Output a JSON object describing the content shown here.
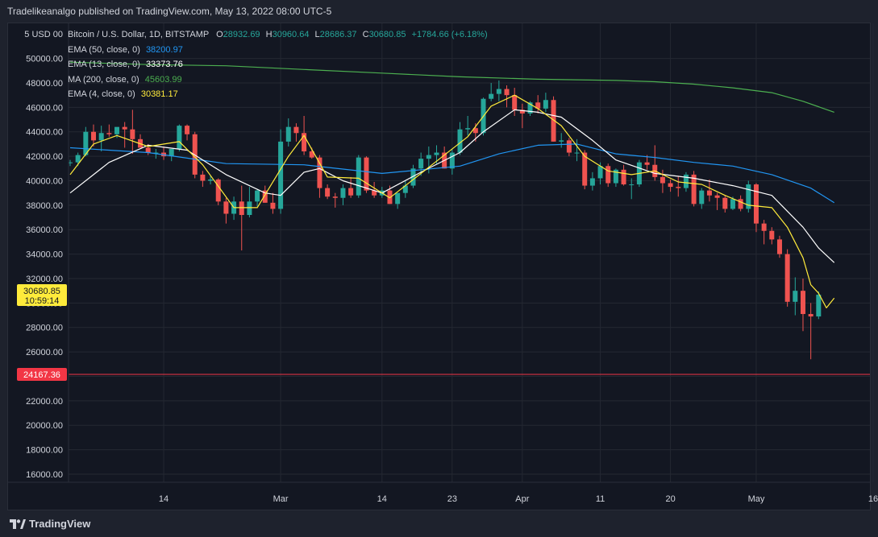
{
  "header": {
    "published_text": "Tradelikeanalgo published on TradingView.com, May 13, 2022 08:00 UTC-5"
  },
  "legend": {
    "symbol": "Bitcoin / U.S. Dollar, 1D, BITSTAMP",
    "ohlc": {
      "o_label": "O",
      "o": "28932.69",
      "h_label": "H",
      "h": "30960.64",
      "l_label": "L",
      "l": "28686.37",
      "c_label": "C",
      "c": "30680.85",
      "change": "+1784.66 (+6.18%)"
    },
    "indicators": [
      {
        "label": "EMA (50, close, 0)",
        "value": "38200.97",
        "color": "#2196f3"
      },
      {
        "label": "EMA (13, close, 0)",
        "value": "33373.76",
        "color": "#ffffff"
      },
      {
        "label": "MA (200, close, 0)",
        "value": "45603.99",
        "color": "#4caf50"
      },
      {
        "label": "EMA (4, close, 0)",
        "value": "30381.17",
        "color": "#ffeb3b"
      }
    ]
  },
  "price_axis": {
    "currency_label": "5 USD 00",
    "current_price": "30680.85",
    "countdown": "10:59:14",
    "hline_price": "24167.36"
  },
  "footer": {
    "brand": "TradingView"
  },
  "colors": {
    "up": "#26a69a",
    "down": "#ef5350",
    "ema50": "#2196f3",
    "ema13": "#ffffff",
    "ma200": "#4caf50",
    "ema4": "#ffeb3b",
    "hline": "#f23645",
    "current": "#ffeb3b"
  },
  "chart_data": {
    "type": "candlestick",
    "title": "Bitcoin / U.S. Dollar, 1D, BITSTAMP",
    "ylim": [
      15000,
      52000
    ],
    "yticks": [
      16000,
      18000,
      20000,
      22000,
      24000,
      26000,
      28000,
      30000,
      32000,
      34000,
      36000,
      38000,
      40000,
      42000,
      44000,
      46000,
      48000,
      50000
    ],
    "ytick_labels": [
      "16000.00",
      "18000.00",
      "20000.00",
      "22000.00",
      "24000.00",
      "26000.00",
      "28000.00",
      "30000.00",
      "32000.00",
      "34000.00",
      "36000.00",
      "38000.00",
      "40000.00",
      "42000.00",
      "44000.00",
      "46000.00",
      "48000.00",
      "50000.00"
    ],
    "x_start": "2022-02-02",
    "xticks": [
      {
        "date": "2022-02-14",
        "label": "14"
      },
      {
        "date": "2022-03-01",
        "label": "Mar"
      },
      {
        "date": "2022-03-14",
        "label": "14"
      },
      {
        "date": "2022-03-23",
        "label": "23"
      },
      {
        "date": "2022-04-01",
        "label": "Apr"
      },
      {
        "date": "2022-04-11",
        "label": "11"
      },
      {
        "date": "2022-04-20",
        "label": "20"
      },
      {
        "date": "2022-05-01",
        "label": "May"
      },
      {
        "date": "2022-05-16",
        "label": "16"
      }
    ],
    "candles": [
      [
        41500,
        41700,
        41200,
        41500
      ],
      [
        41500,
        42300,
        41200,
        42100
      ],
      [
        42100,
        44400,
        42000,
        44000
      ],
      [
        44000,
        44600,
        42800,
        43300
      ],
      [
        43300,
        44500,
        42400,
        43900
      ],
      [
        43900,
        44600,
        43600,
        43800
      ],
      [
        43800,
        44300,
        43500,
        44400
      ],
      [
        44400,
        44800,
        42700,
        44200
      ],
      [
        44200,
        45800,
        42200,
        43400
      ],
      [
        43400,
        43800,
        42800,
        42700
      ],
      [
        42700,
        43000,
        42100,
        42300
      ],
      [
        42300,
        42600,
        41800,
        42300
      ],
      [
        42300,
        42800,
        41700,
        42000
      ],
      [
        42000,
        42600,
        41600,
        42600
      ],
      [
        42600,
        44600,
        42400,
        44500
      ],
      [
        44500,
        44600,
        43300,
        43800
      ],
      [
        43800,
        44000,
        40200,
        40500
      ],
      [
        40500,
        40800,
        39500,
        40000
      ],
      [
        40000,
        40400,
        39700,
        40100
      ],
      [
        40100,
        40200,
        38000,
        38300
      ],
      [
        38300,
        38600,
        36500,
        37300
      ],
      [
        37300,
        38700,
        36800,
        38300
      ],
      [
        38300,
        39600,
        34300,
        37200
      ],
      [
        37200,
        39500,
        37000,
        38300
      ],
      [
        38300,
        39300,
        37900,
        39200
      ],
      [
        39200,
        39600,
        38200,
        38200
      ],
      [
        38200,
        39000,
        37300,
        37700
      ],
      [
        37700,
        44200,
        37300,
        43200
      ],
      [
        43200,
        45100,
        42800,
        44400
      ],
      [
        44400,
        44700,
        43200,
        43900
      ],
      [
        43900,
        45300,
        42100,
        42400
      ],
      [
        42400,
        42700,
        41800,
        41900
      ],
      [
        41900,
        42100,
        38600,
        39400
      ],
      [
        39400,
        39700,
        38500,
        38700
      ],
      [
        38700,
        39000,
        37800,
        38600
      ],
      [
        38600,
        39700,
        38000,
        39400
      ],
      [
        39400,
        40300,
        38600,
        38800
      ],
      [
        38800,
        42100,
        38600,
        41900
      ],
      [
        41900,
        42000,
        39000,
        39200
      ],
      [
        39200,
        39900,
        38600,
        38800
      ],
      [
        38800,
        39500,
        38600,
        39200
      ],
      [
        39200,
        39600,
        38100,
        38100
      ],
      [
        38100,
        39000,
        37700,
        39000
      ],
      [
        39000,
        40000,
        38600,
        39600
      ],
      [
        39600,
        41300,
        39400,
        41000
      ],
      [
        41000,
        42300,
        40400,
        41800
      ],
      [
        41800,
        42800,
        40600,
        42100
      ],
      [
        42100,
        42900,
        41400,
        42300
      ],
      [
        42300,
        42800,
        41000,
        41000
      ],
      [
        41000,
        42600,
        40500,
        42300
      ],
      [
        42300,
        44800,
        42100,
        44200
      ],
      [
        44200,
        45300,
        43700,
        44300
      ],
      [
        44300,
        44700,
        43200,
        43900
      ],
      [
        43900,
        46800,
        43700,
        46700
      ],
      [
        46700,
        48000,
        46500,
        47100
      ],
      [
        47100,
        48200,
        46500,
        47500
      ],
      [
        47500,
        47800,
        46000,
        47000
      ],
      [
        47000,
        47600,
        45300,
        45800
      ],
      [
        45800,
        46300,
        44300,
        45500
      ],
      [
        45500,
        46500,
        45300,
        46400
      ],
      [
        46400,
        47000,
        45500,
        45900
      ],
      [
        45900,
        47200,
        45600,
        46600
      ],
      [
        46600,
        46900,
        43200,
        43200
      ],
      [
        43200,
        43900,
        42700,
        43300
      ],
      [
        43300,
        43500,
        42000,
        42300
      ],
      [
        42300,
        43400,
        41600,
        42300
      ],
      [
        42300,
        42500,
        39300,
        39600
      ],
      [
        39600,
        40700,
        39200,
        40200
      ],
      [
        40200,
        41500,
        39700,
        41200
      ],
      [
        41200,
        41400,
        39500,
        39800
      ],
      [
        39800,
        41000,
        39500,
        40900
      ],
      [
        40900,
        41300,
        39600,
        39700
      ],
      [
        39700,
        40200,
        38500,
        39700
      ],
      [
        39700,
        41700,
        39500,
        41500
      ],
      [
        41500,
        42100,
        40900,
        41300
      ],
      [
        41300,
        42900,
        40000,
        40300
      ],
      [
        40300,
        40900,
        39000,
        39800
      ],
      [
        39800,
        40100,
        39100,
        39500
      ],
      [
        39500,
        40400,
        38700,
        39400
      ],
      [
        39400,
        40700,
        39100,
        40500
      ],
      [
        40500,
        40800,
        37900,
        38100
      ],
      [
        38100,
        39400,
        37700,
        39200
      ],
      [
        39200,
        40100,
        38300,
        38800
      ],
      [
        38800,
        39000,
        37600,
        38600
      ],
      [
        38600,
        38800,
        37400,
        37700
      ],
      [
        37700,
        38700,
        37600,
        38500
      ],
      [
        38500,
        38800,
        37500,
        37700
      ],
      [
        37700,
        40000,
        37400,
        39700
      ],
      [
        39700,
        39800,
        35800,
        36500
      ],
      [
        36500,
        36800,
        34800,
        35900
      ],
      [
        35900,
        36200,
        34800,
        35200
      ],
      [
        35200,
        35500,
        33700,
        34000
      ],
      [
        34000,
        34400,
        29700,
        30100
      ],
      [
        30100,
        32100,
        29000,
        31000
      ],
      [
        31000,
        32000,
        27700,
        29100
      ],
      [
        29100,
        30000,
        25400,
        28900
      ],
      [
        28900,
        30960,
        28686,
        30680
      ]
    ],
    "series": [
      {
        "name": "EMA (50, close, 0)",
        "color": "#2196f3",
        "points": [
          [
            0,
            42700
          ],
          [
            10,
            42300
          ],
          [
            20,
            41400
          ],
          [
            30,
            41300
          ],
          [
            40,
            40600
          ],
          [
            50,
            41200
          ],
          [
            55,
            42200
          ],
          [
            60,
            42900
          ],
          [
            65,
            43000
          ],
          [
            70,
            42200
          ],
          [
            75,
            41900
          ],
          [
            80,
            41500
          ],
          [
            85,
            41200
          ],
          [
            90,
            40500
          ],
          [
            95,
            39400
          ],
          [
            98,
            38200
          ]
        ]
      },
      {
        "name": "EMA (13, close, 0)",
        "color": "#ffffff",
        "points": [
          [
            0,
            39000
          ],
          [
            5,
            41500
          ],
          [
            10,
            42900
          ],
          [
            15,
            42500
          ],
          [
            20,
            40500
          ],
          [
            25,
            39000
          ],
          [
            27,
            38800
          ],
          [
            30,
            40700
          ],
          [
            32,
            41000
          ],
          [
            35,
            40000
          ],
          [
            40,
            39000
          ],
          [
            45,
            40700
          ],
          [
            50,
            42300
          ],
          [
            53,
            44000
          ],
          [
            57,
            45800
          ],
          [
            60,
            45600
          ],
          [
            63,
            45200
          ],
          [
            67,
            43300
          ],
          [
            70,
            41700
          ],
          [
            75,
            40600
          ],
          [
            80,
            40200
          ],
          [
            85,
            39600
          ],
          [
            90,
            38800
          ],
          [
            94,
            36200
          ],
          [
            96,
            34500
          ],
          [
            98,
            33300
          ]
        ]
      },
      {
        "name": "MA (200, close, 0)",
        "color": "#4caf50",
        "points": [
          [
            0,
            49700
          ],
          [
            10,
            49500
          ],
          [
            20,
            49400
          ],
          [
            30,
            49100
          ],
          [
            40,
            48800
          ],
          [
            50,
            48500
          ],
          [
            60,
            48300
          ],
          [
            70,
            48200
          ],
          [
            75,
            48100
          ],
          [
            80,
            47900
          ],
          [
            85,
            47600
          ],
          [
            90,
            47200
          ],
          [
            94,
            46500
          ],
          [
            98,
            45600
          ]
        ]
      },
      {
        "name": "EMA (4, close, 0)",
        "color": "#ffeb3b",
        "points": [
          [
            0,
            40500
          ],
          [
            3,
            43000
          ],
          [
            6,
            43700
          ],
          [
            10,
            42800
          ],
          [
            14,
            43200
          ],
          [
            17,
            41300
          ],
          [
            21,
            37800
          ],
          [
            24,
            37800
          ],
          [
            28,
            42000
          ],
          [
            30,
            43700
          ],
          [
            33,
            40300
          ],
          [
            37,
            40200
          ],
          [
            41,
            38600
          ],
          [
            44,
            40100
          ],
          [
            47,
            41600
          ],
          [
            51,
            43600
          ],
          [
            54,
            46100
          ],
          [
            57,
            47000
          ],
          [
            60,
            45900
          ],
          [
            63,
            44500
          ],
          [
            66,
            42000
          ],
          [
            69,
            40800
          ],
          [
            72,
            40500
          ],
          [
            75,
            40800
          ],
          [
            78,
            39900
          ],
          [
            81,
            39700
          ],
          [
            84,
            38800
          ],
          [
            87,
            38000
          ],
          [
            90,
            37800
          ],
          [
            92,
            36200
          ],
          [
            94,
            33700
          ],
          [
            95,
            31500
          ],
          [
            96,
            30800
          ],
          [
            97,
            29600
          ],
          [
            98,
            30400
          ]
        ]
      }
    ]
  }
}
